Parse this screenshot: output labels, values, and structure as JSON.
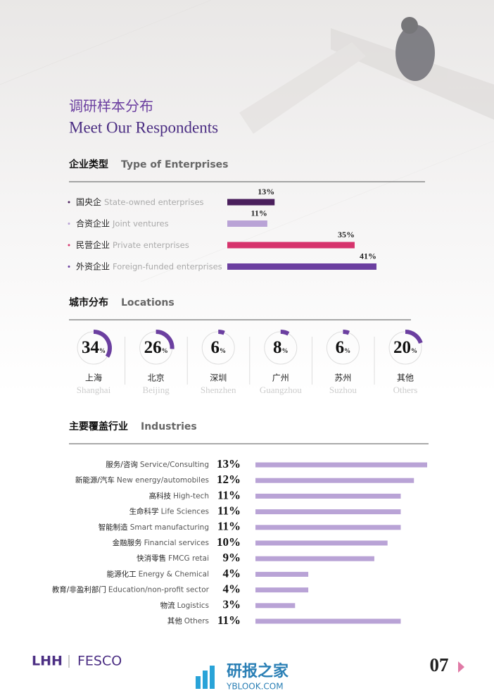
{
  "header": {
    "title_cn": "调研样本分布",
    "title_en": "Meet Our Respondents"
  },
  "chart_data": [
    {
      "type": "bar",
      "title": "企业类型",
      "subtitle": "Type of Enterprises",
      "categories": [
        "国央企",
        "合资企业",
        "民营企业",
        "外资企业"
      ],
      "categories_en": [
        "State-owned enterprises",
        "Joint ventures",
        "Private enterprises",
        "Foreign-funded enterprises"
      ],
      "values": [
        13,
        11,
        35,
        41
      ],
      "value_labels": [
        "13%",
        "11%",
        "35%",
        "41%"
      ],
      "colors": [
        "#4a1f5c",
        "#b9a3d6",
        "#d6336c",
        "#6b3fa0"
      ]
    },
    {
      "type": "donut",
      "title": "城市分布",
      "subtitle": "Locations",
      "categories": [
        "上海",
        "北京",
        "深圳",
        "广州",
        "苏州",
        "其他"
      ],
      "categories_en": [
        "Shanghai",
        "Beijing",
        "Shenzhen",
        "Guangzhou",
        "Suzhou",
        "Others"
      ],
      "values": [
        34,
        26,
        6,
        8,
        6,
        20
      ],
      "unit": "%",
      "color": "#6b3fa0"
    },
    {
      "type": "bar",
      "title": "主要覆盖行业",
      "subtitle": "Industries",
      "categories": [
        "服务/咨询",
        "新能源/汽车",
        "高科技",
        "生命科学",
        "智能制造",
        "金融服务",
        "快消零售",
        "能源化工",
        "教育/非盈利部门",
        "物流",
        "其他"
      ],
      "categories_en": [
        "Service/Consulting",
        "New energy/automobiles",
        "High-tech",
        "Life Sciences",
        "Smart manufacturing",
        "Financial services",
        "FMCG retai",
        "Energy & Chemical",
        "Education/non-profit sector",
        "Logistics",
        "Others"
      ],
      "values": [
        13,
        12,
        11,
        11,
        11,
        10,
        9,
        4,
        4,
        3,
        11
      ],
      "value_labels": [
        "13%",
        "12%",
        "11%",
        "11%",
        "11%",
        "10%",
        "9%",
        "4%",
        "4%",
        "3%",
        "11%"
      ],
      "color": "#b9a3d6"
    }
  ],
  "footer": {
    "brand1": "LHH",
    "brand2": "FESCO",
    "page": "07",
    "watermark_cn": "研报之家",
    "watermark_en": "YBLOOK.COM"
  }
}
